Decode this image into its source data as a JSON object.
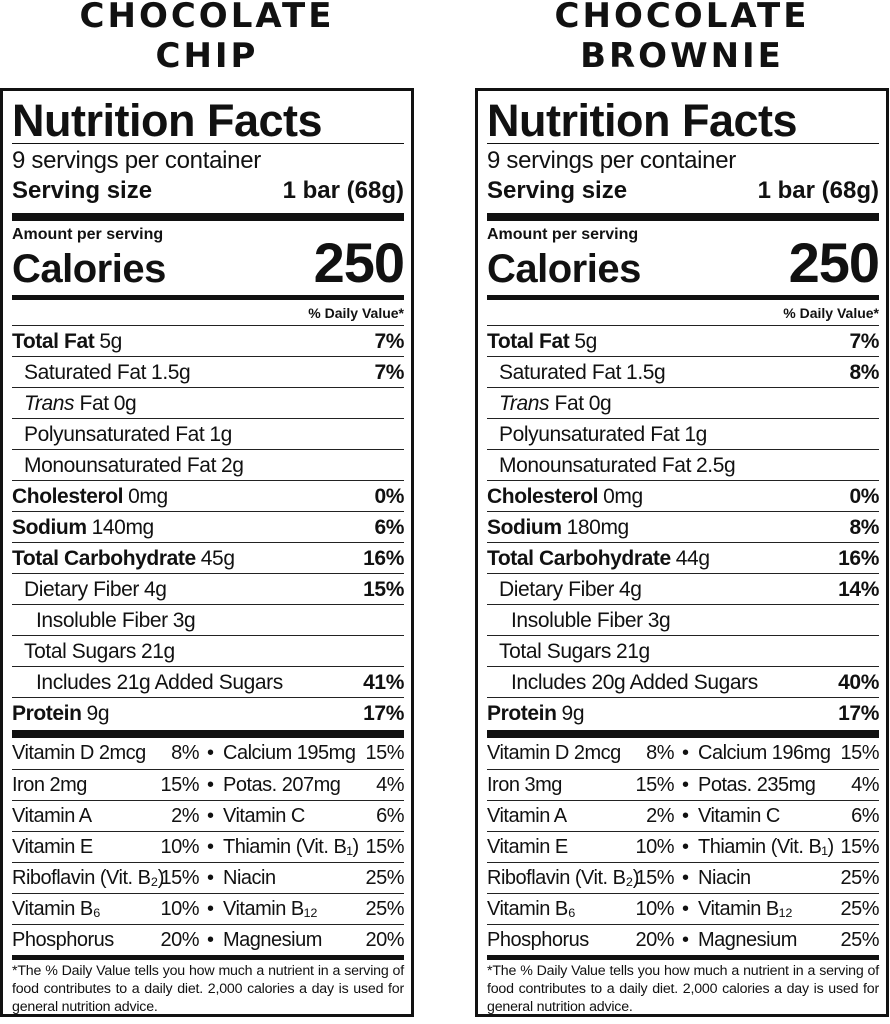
{
  "labels": [
    {
      "heading": [
        "CHOCOLATE",
        "CHIP"
      ],
      "title": "Nutrition Facts",
      "servings": "9 servings per container",
      "serving_size_label": "Serving size",
      "serving_size": "1 bar (68g)",
      "amount_per_serving": "Amount per serving",
      "calories_label": "Calories",
      "calories": "250",
      "dv_header": "% Daily Value*",
      "nutrients": [
        {
          "name": "Total Fat",
          "amount": "5g",
          "dv": "7%"
        },
        {
          "name": "Saturated Fat",
          "amount": "1.5g",
          "dv": "7%"
        },
        {
          "name": "Trans Fat",
          "amount": "0g"
        },
        {
          "name": "Polyunsaturated Fat",
          "amount": "1g"
        },
        {
          "name": "Monounsaturated Fat",
          "amount": "2g"
        },
        {
          "name": "Cholesterol",
          "amount": "0mg",
          "dv": "0%"
        },
        {
          "name": "Sodium",
          "amount": "140mg",
          "dv": "6%"
        },
        {
          "name": "Total Carbohydrate",
          "amount": "45g",
          "dv": "16%"
        },
        {
          "name": "Dietary Fiber",
          "amount": "4g",
          "dv": "15%"
        },
        {
          "name": "Insoluble Fiber",
          "amount": "3g"
        },
        {
          "name": "Total Sugars",
          "amount": "21g"
        },
        {
          "name": "Includes 21g Added Sugars",
          "dv": "41%"
        },
        {
          "name": "Protein",
          "amount": "9g",
          "dv": "17%"
        }
      ],
      "vitamins": [
        [
          [
            "Vitamin D 2mcg",
            "8%"
          ],
          [
            "Calcium 195mg",
            "15%"
          ]
        ],
        [
          [
            "Iron 2mg",
            "15%"
          ],
          [
            "Potas. 207mg",
            "4%"
          ]
        ],
        [
          [
            "Vitamin A",
            "2%"
          ],
          [
            "Vitamin C",
            "6%"
          ]
        ],
        [
          [
            "Vitamin E",
            "10%"
          ],
          [
            "Thiamin (Vit. B₁)",
            "15%"
          ]
        ],
        [
          [
            "Riboflavin (Vit. B₂)",
            "15%"
          ],
          [
            "Niacin",
            "25%"
          ]
        ],
        [
          [
            "Vitamin B₆",
            "10%"
          ],
          [
            "Vitamin B₁₂",
            "25%"
          ]
        ],
        [
          [
            "Phosphorus",
            "20%"
          ],
          [
            "Magnesium",
            "20%"
          ]
        ]
      ],
      "footnote": "*The % Daily Value tells you how much a nutrient in a serving of food contributes to a daily diet. 2,000 calories a day is used for general nutrition advice."
    },
    {
      "heading": [
        "CHOCOLATE",
        "BROWNIE"
      ],
      "title": "Nutrition Facts",
      "servings": "9 servings per container",
      "serving_size_label": "Serving size",
      "serving_size": "1 bar (68g)",
      "amount_per_serving": "Amount per serving",
      "calories_label": "Calories",
      "calories": "250",
      "dv_header": "% Daily Value*",
      "nutrients": [
        {
          "name": "Total Fat",
          "amount": "5g",
          "dv": "7%"
        },
        {
          "name": "Saturated Fat",
          "amount": "1.5g",
          "dv": "8%"
        },
        {
          "name": "Trans Fat",
          "amount": "0g"
        },
        {
          "name": "Polyunsaturated Fat",
          "amount": "1g"
        },
        {
          "name": "Monounsaturated Fat",
          "amount": "2.5g"
        },
        {
          "name": "Cholesterol",
          "amount": "0mg",
          "dv": "0%"
        },
        {
          "name": "Sodium",
          "amount": "180mg",
          "dv": "8%"
        },
        {
          "name": "Total Carbohydrate",
          "amount": "44g",
          "dv": "16%"
        },
        {
          "name": "Dietary Fiber",
          "amount": "4g",
          "dv": "14%"
        },
        {
          "name": "Insoluble Fiber",
          "amount": "3g"
        },
        {
          "name": "Total Sugars",
          "amount": "21g"
        },
        {
          "name": "Includes 20g Added Sugars",
          "dv": "40%"
        },
        {
          "name": "Protein",
          "amount": "9g",
          "dv": "17%"
        }
      ],
      "vitamins": [
        [
          [
            "Vitamin D 2mcg",
            "8%"
          ],
          [
            "Calcium 196mg",
            "15%"
          ]
        ],
        [
          [
            "Iron 3mg",
            "15%"
          ],
          [
            "Potas. 235mg",
            "4%"
          ]
        ],
        [
          [
            "Vitamin A",
            "2%"
          ],
          [
            "Vitamin C",
            "6%"
          ]
        ],
        [
          [
            "Vitamin E",
            "10%"
          ],
          [
            "Thiamin (Vit. B₁)",
            "15%"
          ]
        ],
        [
          [
            "Riboflavin (Vit. B₂)",
            "15%"
          ],
          [
            "Niacin",
            "25%"
          ]
        ],
        [
          [
            "Vitamin B₆",
            "10%"
          ],
          [
            "Vitamin B₁₂",
            "25%"
          ]
        ],
        [
          [
            "Phosphorus",
            "20%"
          ],
          [
            "Magnesium",
            "25%"
          ]
        ]
      ],
      "footnote": "*The % Daily Value tells you how much a nutrient in a serving of food contributes to a daily diet. 2,000 calories a day is used for general nutrition advice."
    }
  ]
}
